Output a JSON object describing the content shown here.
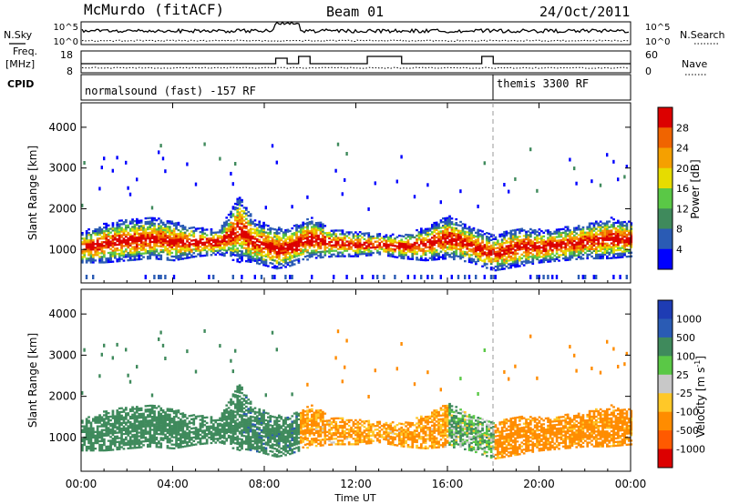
{
  "header": {
    "station": "McMurdo (fitACF)",
    "beam": "Beam 01",
    "date": "24/Oct/2011"
  },
  "side_labels": {
    "nsky": "N.Sky",
    "freq_line1": "Freq.",
    "freq_line2": "[MHz]",
    "cpid": "CPID",
    "nsearch": "N.Search",
    "nave": "Nave"
  },
  "cpid_segments": [
    {
      "label": "normalsound (fast) -157 RF",
      "start_hour": 0
    },
    {
      "label": "themis 3300 RF",
      "start_hour": 18
    }
  ],
  "colors": {
    "power_scale": [
      "#0000ff",
      "#2a5bb4",
      "#3f8a5c",
      "#5ac846",
      "#e6dc00",
      "#f5a000",
      "#f06400",
      "#dc0000"
    ],
    "velocity_scale": [
      "#dc0000",
      "#ff5a00",
      "#ff8c00",
      "#ffc828",
      "#c8c8c8",
      "#5ac846",
      "#3f8a5c",
      "#2a5bb4",
      "#1e3cb4"
    ]
  },
  "chart_data": [
    {
      "type": "line",
      "name": "noise",
      "left_label": "N.Sky",
      "right_label": "N.Search",
      "ylabels_left": [
        "10^5",
        "10^0"
      ],
      "ylabels_right": [
        "10^5",
        "10^0"
      ],
      "xlim": [
        0,
        24
      ]
    },
    {
      "type": "line",
      "name": "frequency",
      "left_label": "Freq. [MHz]",
      "right_label": "Nave",
      "ylim_left": [
        8,
        18
      ],
      "ylim_right": [
        0,
        60
      ],
      "ticks_left": [
        "18",
        "8"
      ],
      "ticks_right": [
        "60",
        "0"
      ],
      "xlim": [
        0,
        24
      ]
    },
    {
      "type": "heatmap",
      "name": "power",
      "xlabel": "",
      "ylabel": "Slant Range [km]",
      "xlim": [
        0,
        24
      ],
      "ylim": [
        180,
        4600
      ],
      "yticks": [
        1000,
        2000,
        3000,
        4000
      ],
      "colorbar_label": "Power [dB]",
      "colorbar_ticks": [
        4,
        8,
        12,
        16,
        20,
        24,
        28
      ],
      "band": [
        {
          "t": 0,
          "lo": 650,
          "hi": 1400
        },
        {
          "t": 1,
          "lo": 650,
          "hi": 1600
        },
        {
          "t": 2,
          "lo": 700,
          "hi": 1700
        },
        {
          "t": 3,
          "lo": 750,
          "hi": 1750
        },
        {
          "t": 4,
          "lo": 700,
          "hi": 1650
        },
        {
          "t": 5,
          "lo": 800,
          "hi": 1500
        },
        {
          "t": 6,
          "lo": 850,
          "hi": 1450
        },
        {
          "t": 6.9,
          "lo": 700,
          "hi": 2300
        },
        {
          "t": 7.5,
          "lo": 650,
          "hi": 1700
        },
        {
          "t": 8.5,
          "lo": 500,
          "hi": 1500
        },
        {
          "t": 9,
          "lo": 550,
          "hi": 1500
        },
        {
          "t": 10,
          "lo": 750,
          "hi": 1750
        },
        {
          "t": 11,
          "lo": 800,
          "hi": 1450
        },
        {
          "t": 12,
          "lo": 800,
          "hi": 1400
        },
        {
          "t": 13,
          "lo": 850,
          "hi": 1350
        },
        {
          "t": 14,
          "lo": 750,
          "hi": 1350
        },
        {
          "t": 15,
          "lo": 700,
          "hi": 1500
        },
        {
          "t": 16,
          "lo": 750,
          "hi": 1800
        },
        {
          "t": 17,
          "lo": 650,
          "hi": 1500
        },
        {
          "t": 18,
          "lo": 450,
          "hi": 1300
        },
        {
          "t": 19,
          "lo": 550,
          "hi": 1500
        },
        {
          "t": 20,
          "lo": 650,
          "hi": 1450
        },
        {
          "t": 21,
          "lo": 700,
          "hi": 1500
        },
        {
          "t": 22,
          "lo": 750,
          "hi": 1600
        },
        {
          "t": 23,
          "lo": 750,
          "hi": 1750
        },
        {
          "t": 24,
          "lo": 800,
          "hi": 1650
        }
      ]
    },
    {
      "type": "heatmap",
      "name": "velocity",
      "xlabel": "Time UT",
      "ylabel": "Slant Range [km]",
      "xlim": [
        0,
        24
      ],
      "ylim": [
        180,
        4600
      ],
      "xticks": [
        "00:00",
        "04:00",
        "08:00",
        "12:00",
        "16:00",
        "20:00",
        "00:00"
      ],
      "yticks": [
        1000,
        2000,
        3000,
        4000
      ],
      "colorbar_label": "Velocity [m s^-1]",
      "colorbar_ticks": [
        1000,
        500,
        100,
        25,
        -25,
        -100,
        -500,
        -1000
      ],
      "regimes": [
        {
          "from": 0,
          "to": 7,
          "velocity": 300
        },
        {
          "from": 7,
          "to": 9.5,
          "velocity": 400
        },
        {
          "from": 9.5,
          "to": 16,
          "velocity": -150
        },
        {
          "from": 16,
          "to": 18,
          "velocity": 80
        },
        {
          "from": 18,
          "to": 24,
          "velocity": -200
        }
      ]
    }
  ]
}
